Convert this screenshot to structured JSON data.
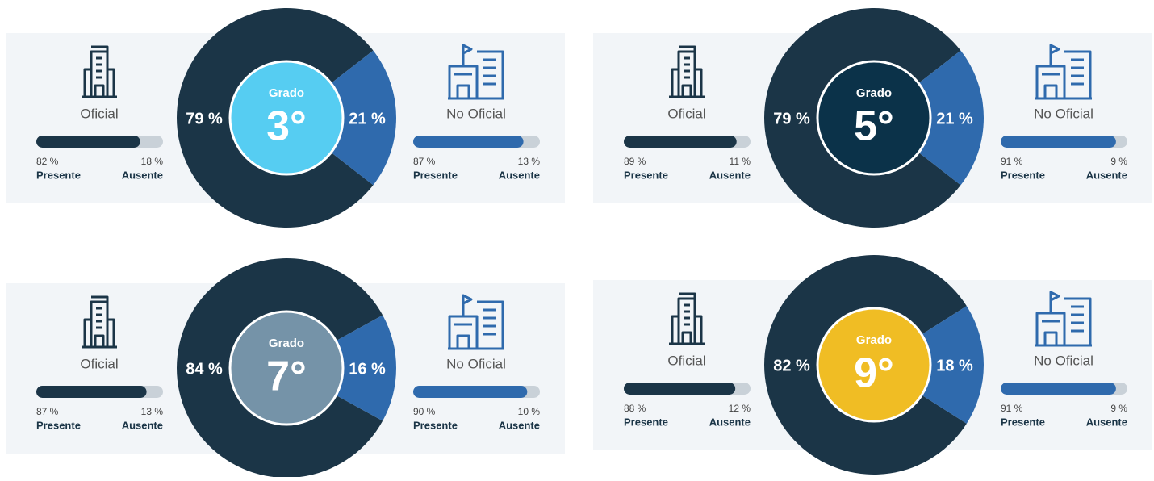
{
  "chart_data": [
    {
      "type": "pie",
      "title": "Grado",
      "center_label": "3°",
      "center_color": "#56cdf2",
      "categories": [
        "Oficial",
        "No Oficial"
      ],
      "values": [
        79,
        21
      ],
      "value_labels": [
        "79 %",
        "21 %"
      ],
      "colors": [
        "#1b3547",
        "#2f6aad"
      ],
      "attendance": [
        {
          "categories": [
            "Presente",
            "Ausente"
          ],
          "values": [
            82,
            18
          ],
          "value_labels": [
            "82 %",
            "18 %"
          ]
        },
        {
          "categories": [
            "Presente",
            "Ausente"
          ],
          "values": [
            87,
            13
          ],
          "value_labels": [
            "87 %",
            "13 %"
          ]
        }
      ]
    },
    {
      "type": "pie",
      "title": "Grado",
      "center_label": "5°",
      "center_color": "#0b3249",
      "categories": [
        "Oficial",
        "No Oficial"
      ],
      "values": [
        79,
        21
      ],
      "value_labels": [
        "79 %",
        "21 %"
      ],
      "colors": [
        "#1b3547",
        "#2f6aad"
      ],
      "attendance": [
        {
          "categories": [
            "Presente",
            "Ausente"
          ],
          "values": [
            89,
            11
          ],
          "value_labels": [
            "89 %",
            "11 %"
          ]
        },
        {
          "categories": [
            "Presente",
            "Ausente"
          ],
          "values": [
            91,
            9
          ],
          "value_labels": [
            "91 %",
            "9 %"
          ]
        }
      ]
    },
    {
      "type": "pie",
      "title": "Grado",
      "center_label": "7°",
      "center_color": "#7593a8",
      "categories": [
        "Oficial",
        "No Oficial"
      ],
      "values": [
        84,
        16
      ],
      "value_labels": [
        "84 %",
        "16 %"
      ],
      "colors": [
        "#1b3547",
        "#2f6aad"
      ],
      "attendance": [
        {
          "categories": [
            "Presente",
            "Ausente"
          ],
          "values": [
            87,
            13
          ],
          "value_labels": [
            "87 %",
            "13 %"
          ]
        },
        {
          "categories": [
            "Presente",
            "Ausente"
          ],
          "values": [
            90,
            10
          ],
          "value_labels": [
            "90 %",
            "10 %"
          ]
        }
      ]
    },
    {
      "type": "pie",
      "title": "Grado",
      "center_label": "9°",
      "center_color": "#f0bd24",
      "categories": [
        "Oficial",
        "No Oficial"
      ],
      "values": [
        82,
        18
      ],
      "value_labels": [
        "82 %",
        "18 %"
      ],
      "colors": [
        "#1b3547",
        "#2f6aad"
      ],
      "attendance": [
        {
          "categories": [
            "Presente",
            "Ausente"
          ],
          "values": [
            88,
            12
          ],
          "value_labels": [
            "88 %",
            "12 %"
          ]
        },
        {
          "categories": [
            "Presente",
            "Ausente"
          ],
          "values": [
            91,
            9
          ],
          "value_labels": [
            "91 %",
            "9 %"
          ]
        }
      ]
    }
  ]
}
